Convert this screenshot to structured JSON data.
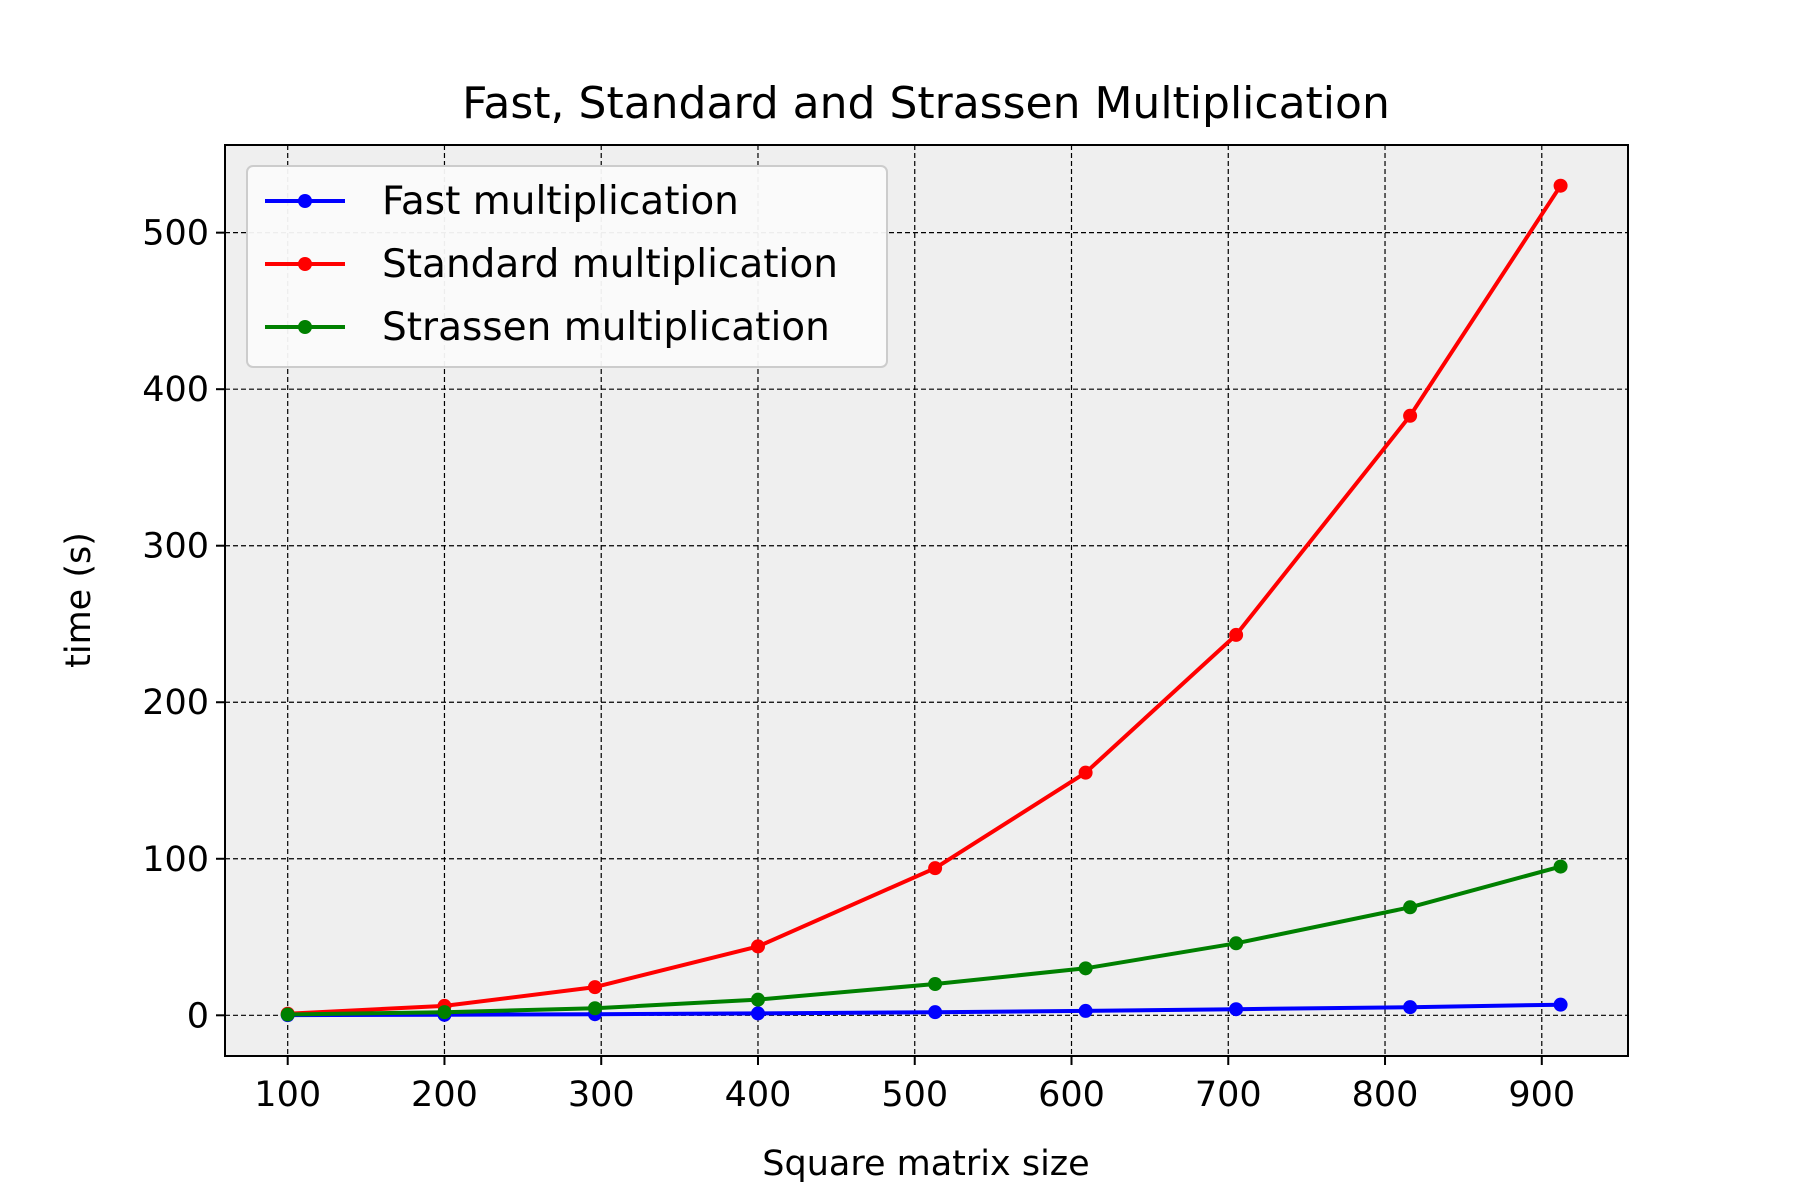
{
  "chart_data": {
    "type": "line",
    "title": "Fast, Standard and Strassen Multiplication",
    "xlabel": "Square matrix size",
    "ylabel": "time (s)",
    "xlim": [
      60,
      955
    ],
    "ylim": [
      -26,
      556
    ],
    "xticks": [
      100,
      200,
      300,
      400,
      500,
      600,
      700,
      800,
      900
    ],
    "xtick_labels": [
      "100",
      "200",
      "300",
      "400",
      "500",
      "600",
      "700",
      "800",
      "900"
    ],
    "yticks": [
      0,
      100,
      200,
      300,
      400,
      500
    ],
    "ytick_labels": [
      "0",
      "100",
      "200",
      "300",
      "400",
      "500"
    ],
    "grid": true,
    "legend_position": "top-left",
    "x": [
      100,
      200,
      296,
      400,
      513,
      609,
      705,
      816,
      912
    ],
    "series": [
      {
        "name": "Fast multiplication",
        "color": "#0000ff",
        "values": [
          0.1,
          0.3,
          0.7,
          1.2,
          2.0,
          2.8,
          3.9,
          5.2,
          6.8
        ]
      },
      {
        "name": "Standard multiplication",
        "color": "#ff0000",
        "values": [
          1.0,
          6.0,
          18.0,
          44.0,
          94.0,
          155.0,
          243.0,
          383.0,
          530.0
        ]
      },
      {
        "name": "Strassen multiplication",
        "color": "#008000",
        "values": [
          0.5,
          2.0,
          4.5,
          10.0,
          20.0,
          30.0,
          46.0,
          69.0,
          95.0
        ]
      }
    ]
  }
}
